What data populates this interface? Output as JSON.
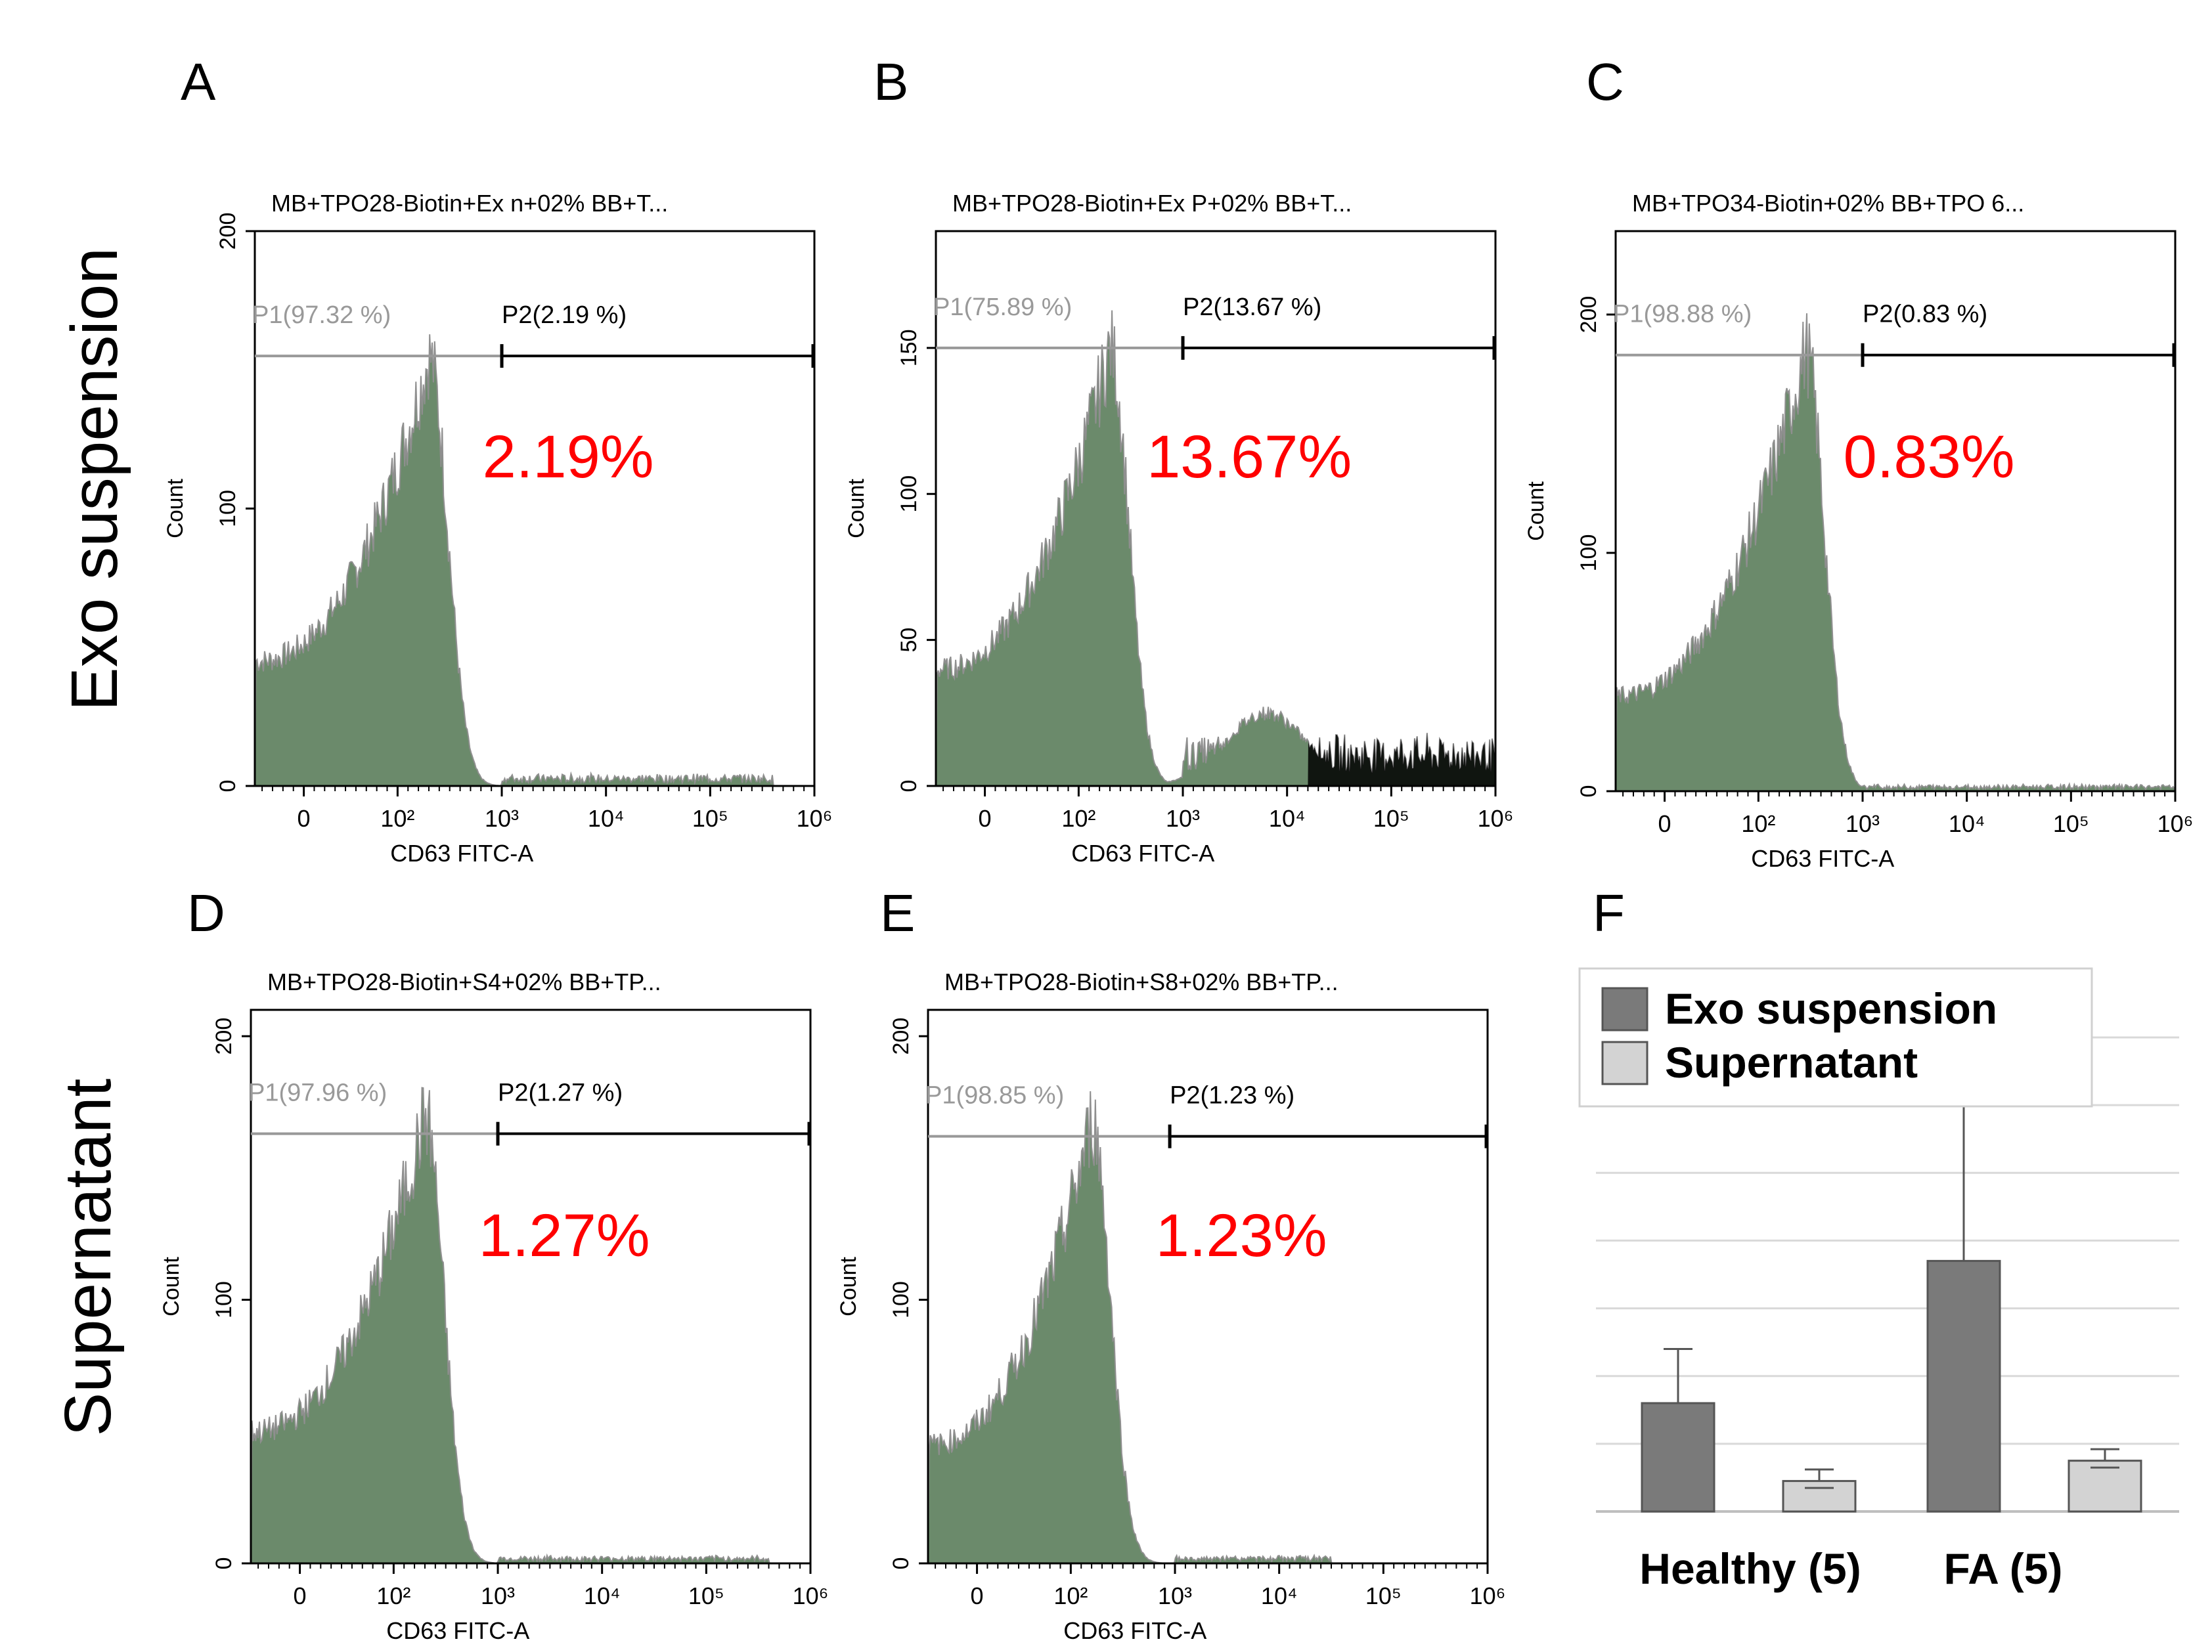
{
  "row_labels": [
    "Exo suspension",
    "Supernatant"
  ],
  "colors": {
    "histogram_fill": "#6b8a6b",
    "histogram_edge": "#8f8f8f",
    "tail_fill": "#000000",
    "percent_text": "#ff0000",
    "gate_p1": "#999999",
    "gate_p2": "#000000",
    "bar_exo": "#7a7a7a",
    "bar_supernatant": "#d3d3d3"
  },
  "chart_data": [
    {
      "type": "histogram",
      "panel": "A",
      "title": "MB+TPO28-Biotin+Ex n+02% BB+T...",
      "xlabel": "CD63 FITC-A",
      "ylabel": "Count",
      "x_ticks": [
        "0",
        "10²",
        "10³",
        "10⁴",
        "10⁵",
        "10⁶"
      ],
      "y_ticks": [
        "0",
        "100",
        "200"
      ],
      "ylim": [
        0,
        200
      ],
      "gates": {
        "p1_label": "P1(97.32 %)",
        "p2_label": "P2(2.19 %)",
        "p1_percent": 97.32,
        "p2_percent": 2.19,
        "p2_start_log": 3.0,
        "level": 155
      },
      "highlight": "2.19%",
      "peak": {
        "log_position": 2.3,
        "count": 155,
        "low_shoulder": 45
      },
      "tail": {
        "start_log": 3.0,
        "end_log": 5.6,
        "level": 3
      },
      "hump": null
    },
    {
      "type": "histogram",
      "panel": "B",
      "title": "MB+TPO28-Biotin+Ex P+02% BB+T...",
      "xlabel": "CD63 FITC-A",
      "ylabel": "Count",
      "x_ticks": [
        "0",
        "10²",
        "10³",
        "10⁴",
        "10⁵",
        "10⁶"
      ],
      "y_ticks": [
        "0",
        "50",
        "100",
        "150"
      ],
      "ylim": [
        0,
        190
      ],
      "gates": {
        "p1_label": "P1(75.89 %)",
        "p2_label": "P2(13.67 %)",
        "p1_percent": 75.89,
        "p2_percent": 13.67,
        "p2_start_log": 3.0,
        "level": 150
      },
      "highlight": "13.67%",
      "peak": {
        "log_position": 2.3,
        "count": 150,
        "low_shoulder": 40
      },
      "tail": {
        "start_log": 3.0,
        "end_log": 6.0,
        "level": 12
      },
      "hump": {
        "log_position": 3.8,
        "count": 25
      }
    },
    {
      "type": "histogram",
      "panel": "C",
      "title": "MB+TPO34-Biotin+02% BB+TPO 6...",
      "xlabel": "CD63 FITC-A",
      "ylabel": "Count",
      "x_ticks": [
        "0",
        "10²",
        "10³",
        "10⁴",
        "10⁵",
        "10⁶"
      ],
      "y_ticks": [
        "0",
        "100",
        "200"
      ],
      "ylim": [
        0,
        235
      ],
      "gates": {
        "p1_label": "P1(98.88 %)",
        "p2_label": "P2(0.83 %)",
        "p1_percent": 98.88,
        "p2_percent": 0.83,
        "p2_start_log": 3.0,
        "level": 183
      },
      "highlight": "0.83%",
      "peak": {
        "log_position": 2.45,
        "count": 185,
        "low_shoulder": 40
      },
      "tail": {
        "start_log": 3.0,
        "end_log": 6.0,
        "level": 2
      },
      "hump": null
    },
    {
      "type": "histogram",
      "panel": "D",
      "title": "MB+TPO28-Biotin+S4+02% BB+TP...",
      "xlabel": "CD63 FITC-A",
      "ylabel": "Count",
      "x_ticks": [
        "0",
        "10²",
        "10³",
        "10⁴",
        "10⁵",
        "10⁶"
      ],
      "y_ticks": [
        "0",
        "100",
        "200"
      ],
      "ylim": [
        0,
        210
      ],
      "gates": {
        "p1_label": "P1(97.96 %)",
        "p2_label": "P2(1.27 %)",
        "p1_percent": 97.96,
        "p2_percent": 1.27,
        "p2_start_log": 3.0,
        "level": 163
      },
      "highlight": "1.27%",
      "peak": {
        "log_position": 2.3,
        "count": 170,
        "low_shoulder": 50
      },
      "tail": {
        "start_log": 3.0,
        "end_log": 5.6,
        "level": 2
      },
      "hump": null
    },
    {
      "type": "histogram",
      "panel": "E",
      "title": "MB+TPO28-Biotin+S8+02% BB+TP...",
      "xlabel": "CD63 FITC-A",
      "ylabel": "Count",
      "x_ticks": [
        "0",
        "10²",
        "10³",
        "10⁴",
        "10⁵",
        "10⁶"
      ],
      "y_ticks": [
        "0",
        "100",
        "200"
      ],
      "ylim": [
        0,
        210
      ],
      "gates": {
        "p1_label": "P1(98.85 %)",
        "p2_label": "P2(1.23 %)",
        "p1_percent": 98.85,
        "p2_percent": 1.23,
        "p2_start_log": 2.95,
        "level": 162
      },
      "highlight": "1.23%",
      "peak": {
        "log_position": 2.2,
        "count": 168,
        "low_shoulder": 45
      },
      "tail": {
        "start_log": 3.0,
        "end_log": 4.5,
        "level": 2
      },
      "hump": null
    },
    {
      "type": "bar",
      "panel": "F",
      "categories": [
        "Healthy (5)",
        "FA (5)"
      ],
      "series": [
        {
          "name": "Exo suspension",
          "values": [
            1.6,
            3.7
          ],
          "errors": [
            0.8,
            2.3
          ]
        },
        {
          "name": "Supernatant",
          "values": [
            0.45,
            0.75
          ],
          "errors": [
            0.17,
            0.17
          ]
        }
      ],
      "ylim": [
        0,
        7
      ],
      "legend": "top-left",
      "grid": true
    }
  ]
}
